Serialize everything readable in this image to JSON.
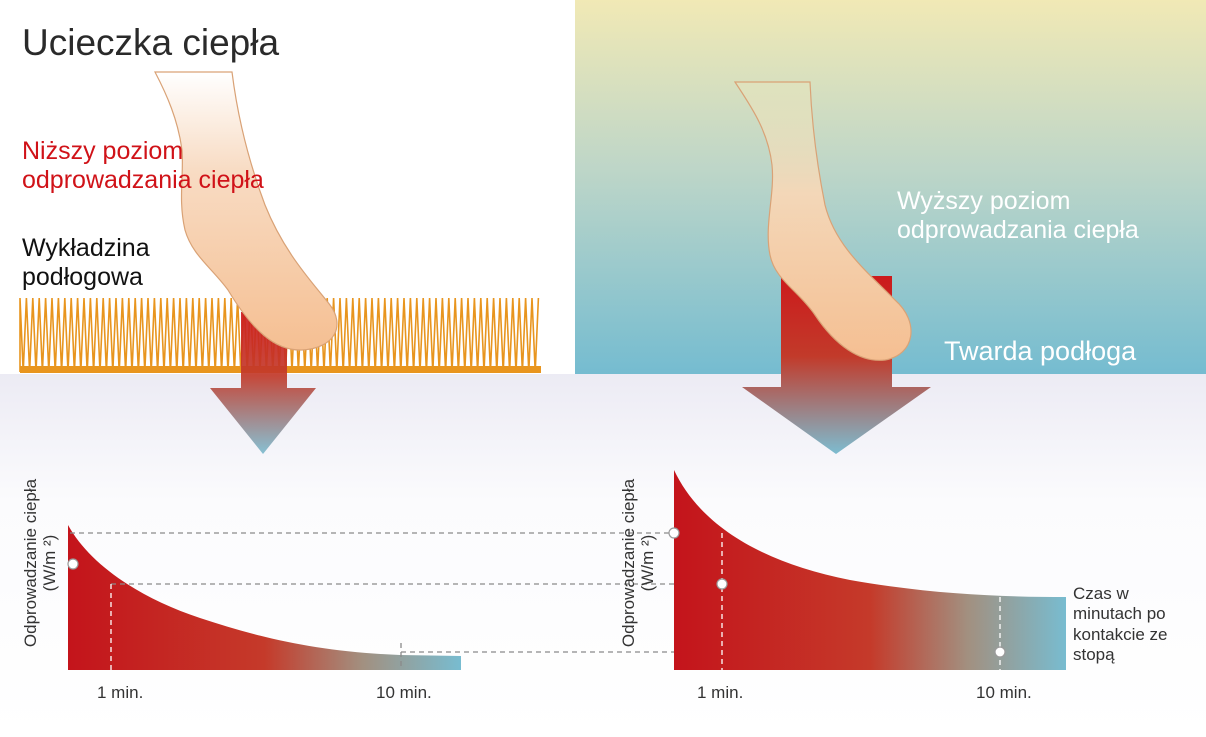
{
  "title": "Ucieczka ciepła",
  "left_panel": {
    "heat_label": [
      "Niższy poziom",
      "odprowadzania ciepła"
    ],
    "surface_label": [
      "Wykładzina",
      "podłogowa"
    ]
  },
  "right_panel": {
    "heat_label": [
      "Wyższy poziom",
      "odprowadzania ciepła"
    ],
    "surface_label": "Twarda podłoga"
  },
  "colors": {
    "heat_red": "#c8141c",
    "cool_blue": "#78bcd0",
    "carpet": "#e8951e",
    "skin": "#f4c196"
  },
  "chart_data": [
    {
      "type": "area",
      "ylabel": [
        "Odprowadzanie ciepła",
        "(W/m ²)"
      ],
      "xlabel": "",
      "x_ticks": [
        "1 min.",
        "10 min."
      ],
      "curve": "decay",
      "relative_level_at_1min": 0.3,
      "relative_level_at_10min": 0.08
    },
    {
      "type": "area",
      "ylabel": [
        "Odprowadzanie ciepła",
        "(W/m ²)"
      ],
      "xlabel": [
        "Czas w",
        "minutach po",
        "kontakcie ze",
        "stopą"
      ],
      "x_ticks": [
        "1 min.",
        "10 min."
      ],
      "curve": "decay",
      "relative_level_at_1min": 0.55,
      "relative_level_at_10min": 0.35
    }
  ]
}
